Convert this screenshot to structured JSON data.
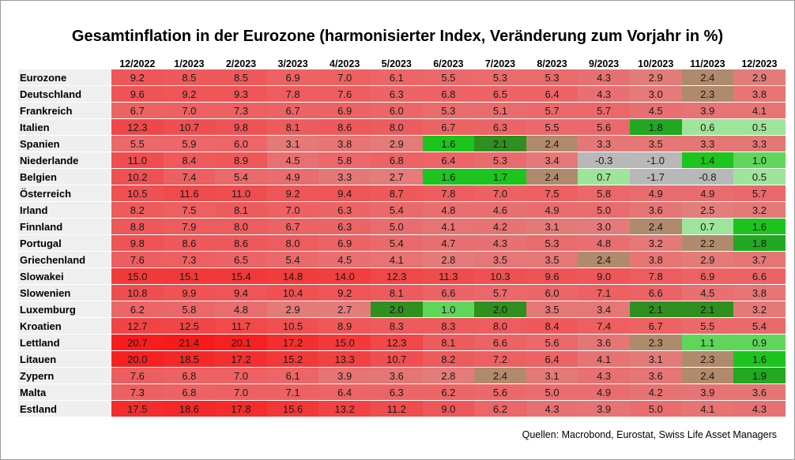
{
  "title": "Gesamtinflation in der Eurozone (harmonisierter Index, Veränderung zum Vorjahr in %)",
  "source": "Quellen: Macrobond, Eurostat, Swiss Life Asset Managers",
  "chart_data": {
    "type": "heatmap",
    "title": "Gesamtinflation in der Eurozone (harmonisierter Index, Veränderung zum Vorjahr in %)",
    "columns": [
      "12/2022",
      "1/2023",
      "2/2023",
      "3/2023",
      "4/2023",
      "5/2023",
      "6/2023",
      "7/2023",
      "8/2023",
      "9/2023",
      "10/2023",
      "11/2023",
      "12/2023"
    ],
    "rows": [
      {
        "country": "Eurozone",
        "values": [
          9.2,
          8.5,
          8.5,
          6.9,
          7.0,
          6.1,
          5.5,
          5.3,
          5.3,
          4.3,
          2.9,
          2.4,
          2.9
        ]
      },
      {
        "country": "Deutschland",
        "values": [
          9.6,
          9.2,
          9.3,
          7.8,
          7.6,
          6.3,
          6.8,
          6.5,
          6.4,
          4.3,
          3.0,
          2.3,
          3.8
        ]
      },
      {
        "country": "Frankreich",
        "values": [
          6.7,
          7.0,
          7.3,
          6.7,
          6.9,
          6.0,
          5.3,
          5.1,
          5.7,
          5.7,
          4.5,
          3.9,
          4.1
        ]
      },
      {
        "country": "Italien",
        "values": [
          12.3,
          10.7,
          9.8,
          8.1,
          8.6,
          8.0,
          6.7,
          6.3,
          5.5,
          5.6,
          1.8,
          0.6,
          0.5
        ]
      },
      {
        "country": "Spanien",
        "values": [
          5.5,
          5.9,
          6.0,
          3.1,
          3.8,
          2.9,
          1.6,
          2.1,
          2.4,
          3.3,
          3.5,
          3.3,
          3.3
        ]
      },
      {
        "country": "Niederlande",
        "values": [
          11.0,
          8.4,
          8.9,
          4.5,
          5.8,
          6.8,
          6.4,
          5.3,
          3.4,
          -0.3,
          -1.0,
          1.4,
          1.0
        ]
      },
      {
        "country": "Belgien",
        "values": [
          10.2,
          7.4,
          5.4,
          4.9,
          3.3,
          2.7,
          1.6,
          1.7,
          2.4,
          0.7,
          -1.7,
          -0.8,
          0.5
        ]
      },
      {
        "country": "Österreich",
        "values": [
          10.5,
          11.6,
          11.0,
          9.2,
          9.4,
          8.7,
          7.8,
          7.0,
          7.5,
          5.8,
          4.9,
          4.9,
          5.7
        ]
      },
      {
        "country": "Irland",
        "values": [
          8.2,
          7.5,
          8.1,
          7.0,
          6.3,
          5.4,
          4.8,
          4.6,
          4.9,
          5.0,
          3.6,
          2.5,
          3.2
        ]
      },
      {
        "country": "Finnland",
        "values": [
          8.8,
          7.9,
          8.0,
          6.7,
          6.3,
          5.0,
          4.1,
          4.2,
          3.1,
          3.0,
          2.4,
          0.7,
          1.6
        ]
      },
      {
        "country": "Portugal",
        "values": [
          9.8,
          8.6,
          8.6,
          8.0,
          6.9,
          5.4,
          4.7,
          4.3,
          5.3,
          4.8,
          3.2,
          2.2,
          1.8
        ]
      },
      {
        "country": "Griechenland",
        "values": [
          7.6,
          7.3,
          6.5,
          5.4,
          4.5,
          4.1,
          2.8,
          3.5,
          3.5,
          2.4,
          3.8,
          2.9,
          3.7
        ]
      },
      {
        "country": "Slowakei",
        "values": [
          15.0,
          15.1,
          15.4,
          14.8,
          14.0,
          12.3,
          11.3,
          10.3,
          9.6,
          9.0,
          7.8,
          6.9,
          6.6
        ]
      },
      {
        "country": "Slowenien",
        "values": [
          10.8,
          9.9,
          9.4,
          10.4,
          9.2,
          8.1,
          6.6,
          5.7,
          6.0,
          7.1,
          6.6,
          4.5,
          3.8
        ]
      },
      {
        "country": "Luxemburg",
        "values": [
          6.2,
          5.8,
          4.8,
          2.9,
          2.7,
          2.0,
          1.0,
          2.0,
          3.5,
          3.4,
          2.1,
          2.1,
          3.2
        ]
      },
      {
        "country": "Kroatien",
        "values": [
          12.7,
          12.5,
          11.7,
          10.5,
          8.9,
          8.3,
          8.3,
          8.0,
          8.4,
          7.4,
          6.7,
          5.5,
          5.4
        ]
      },
      {
        "country": "Lettland",
        "values": [
          20.7,
          21.4,
          20.1,
          17.2,
          15.0,
          12.3,
          8.1,
          6.6,
          5.6,
          3.6,
          2.3,
          1.1,
          0.9
        ]
      },
      {
        "country": "Litauen",
        "values": [
          20.0,
          18.5,
          17.2,
          15.2,
          13.3,
          10.7,
          8.2,
          7.2,
          6.4,
          4.1,
          3.1,
          2.3,
          1.6
        ]
      },
      {
        "country": "Zypern",
        "values": [
          7.6,
          6.8,
          7.0,
          6.1,
          3.9,
          3.6,
          2.8,
          2.4,
          3.1,
          4.3,
          3.6,
          2.4,
          1.9
        ]
      },
      {
        "country": "Malta",
        "values": [
          7.3,
          6.8,
          7.0,
          7.1,
          6.4,
          6.3,
          6.2,
          5.6,
          5.0,
          4.9,
          4.2,
          3.9,
          3.6
        ]
      },
      {
        "country": "Estland",
        "values": [
          17.5,
          18.6,
          17.8,
          15.6,
          13.2,
          11.2,
          9.0,
          6.2,
          4.3,
          3.9,
          5.0,
          4.1,
          4.3
        ]
      }
    ]
  }
}
